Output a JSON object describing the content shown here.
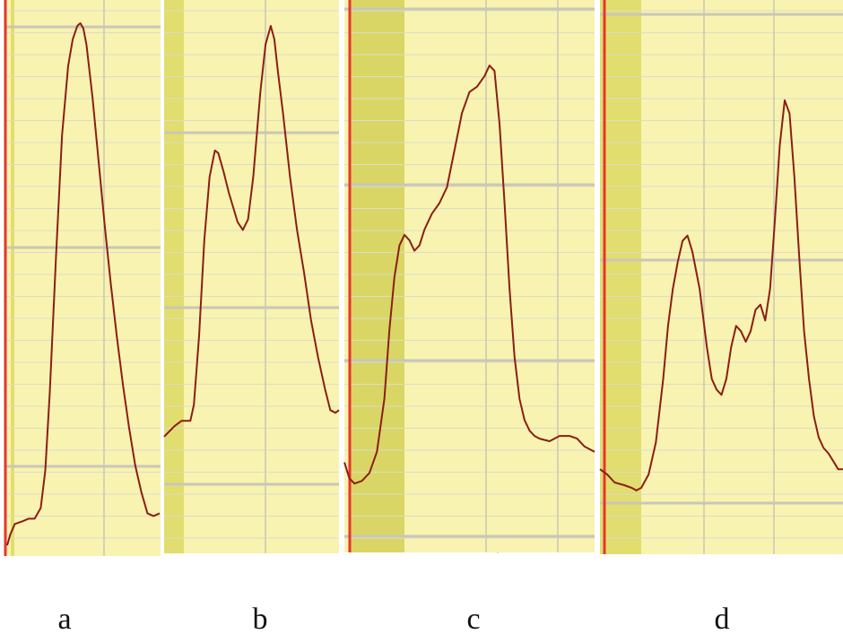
{
  "chart_data": [
    {
      "type": "line",
      "panel_label": "a",
      "grid": true,
      "colors": {
        "background": "#f8f3b0",
        "band": "#e1dd6e",
        "major_grid": "#c9c7b6",
        "minor_grid": "#dcdcc8",
        "marker": "#e8362a",
        "trace": "#8b1e16"
      },
      "xlim": [
        0,
        100
      ],
      "ylim": [
        0,
        100
      ],
      "series": [
        {
          "x": [
            0,
            2,
            5,
            10,
            14,
            18,
            22,
            25,
            28,
            32,
            36,
            40,
            43,
            46,
            48,
            50,
            52,
            54,
            56,
            60,
            64,
            68,
            72,
            76,
            80,
            84,
            88,
            92,
            96,
            100
          ],
          "y": [
            1,
            3,
            5,
            5.5,
            6,
            6,
            8,
            15,
            30,
            55,
            78,
            91,
            96,
            98.5,
            99,
            98,
            95,
            90,
            85,
            73,
            61,
            50,
            40,
            31,
            23,
            16,
            11,
            7,
            6.5,
            7
          ]
        }
      ]
    },
    {
      "type": "line",
      "panel_label": "b",
      "grid": true,
      "colors": {
        "background": "#f8f3b0",
        "band": "#e1dd6e",
        "major_grid": "#c9c7b6",
        "minor_grid": "#dcdcc8",
        "marker": "#e8362a",
        "trace": "#8b1e16"
      },
      "xlim": [
        0,
        100
      ],
      "ylim": [
        0,
        100
      ],
      "series": [
        {
          "x": [
            0,
            3,
            6,
            10,
            13,
            15,
            17,
            20,
            23,
            26,
            29,
            31,
            34,
            37,
            42,
            45,
            48,
            51,
            55,
            58,
            61,
            63,
            65,
            68,
            72,
            76,
            80,
            84,
            88,
            92,
            95,
            98,
            100
          ],
          "y": [
            21,
            22,
            23,
            24,
            24,
            24,
            27,
            40,
            58,
            70,
            75,
            74.5,
            71,
            67,
            61.5,
            60,
            62,
            70,
            86,
            95,
            98.5,
            96,
            90,
            82,
            70,
            60,
            52,
            43,
            36,
            30,
            26,
            25.5,
            26
          ]
        }
      ]
    },
    {
      "type": "line",
      "panel_label": "c",
      "grid": true,
      "colors": {
        "background": "#f8f3b0",
        "band": "#d9d665",
        "major_grid": "#c9c7b6",
        "minor_grid": "#dcdcc8",
        "marker": "#e8362a",
        "trace": "#8b1e16"
      },
      "xlim": [
        0,
        100
      ],
      "ylim": [
        0,
        100
      ],
      "series": [
        {
          "x": [
            0,
            2,
            4,
            7,
            10,
            13,
            16,
            18,
            20,
            22,
            24,
            26,
            28,
            30,
            32,
            35,
            38,
            41,
            44,
            47,
            50,
            53,
            56,
            58,
            60,
            62,
            64,
            66,
            68,
            70,
            72,
            74,
            76,
            78,
            82,
            86,
            90,
            93,
            96,
            98,
            100
          ],
          "y": [
            16,
            13,
            12,
            12.5,
            14,
            18,
            28,
            41,
            51,
            57,
            59,
            58,
            56,
            57,
            60,
            63,
            65,
            68,
            75,
            82,
            86,
            87,
            89,
            91,
            90,
            80,
            65,
            49,
            36,
            28,
            24,
            22,
            21,
            20.5,
            20,
            21,
            21,
            20.5,
            19,
            18.5,
            18
          ]
        }
      ]
    },
    {
      "type": "line",
      "panel_label": "d",
      "grid": true,
      "colors": {
        "background": "#f8f3b0",
        "band": "#e1dd6e",
        "major_grid": "#c9c7b6",
        "minor_grid": "#dcdcc8",
        "marker": "#e8362a",
        "trace": "#8b1e16"
      },
      "xlim": [
        0,
        100
      ],
      "ylim": [
        0,
        100
      ],
      "series": [
        {
          "x": [
            0,
            3,
            6,
            10,
            13,
            15,
            17,
            20,
            23,
            26,
            28,
            30,
            32,
            34,
            36,
            38,
            41,
            44,
            46,
            48,
            50,
            52,
            54,
            56,
            58,
            60,
            62,
            64,
            66,
            68,
            70,
            72,
            74,
            76,
            78,
            80,
            82,
            84,
            86,
            88,
            90,
            92,
            94,
            96,
            98,
            100
          ],
          "y": [
            15,
            14,
            12.5,
            12,
            11.5,
            11,
            11.5,
            14,
            20,
            32,
            42,
            49,
            54,
            58,
            59,
            56,
            49,
            38,
            32,
            30,
            29,
            32,
            38,
            42,
            41,
            39,
            41,
            45,
            46,
            43,
            49,
            62,
            76,
            84.5,
            82,
            70,
            55,
            41,
            32,
            25,
            21,
            19,
            18,
            16.5,
            15,
            15
          ]
        }
      ]
    }
  ]
}
